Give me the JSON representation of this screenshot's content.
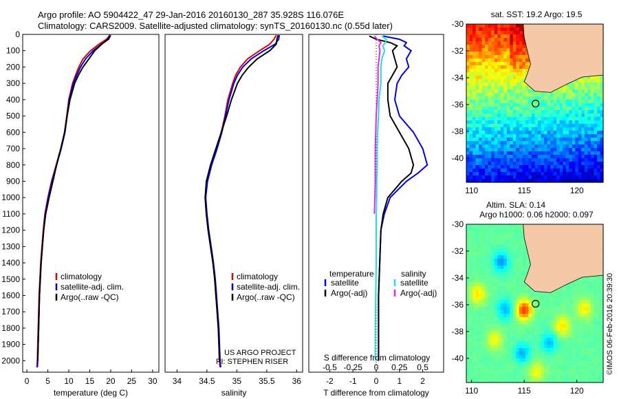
{
  "header": {
    "line1": "Argo profile: AO 5904422_47 29-Jan-2016 20160130_287 35.928S 116.076E",
    "line2": "Climatology: CARS2009. Satellite-adjusted climatology: synTS_20160130.nc (0.55d later)"
  },
  "colors": {
    "climatology": "#dd0000",
    "satellite": "#0000dd",
    "argo": "#000000",
    "sat_salinity": "#22dddd",
    "argo_salinity": "#ee22ee",
    "land": "#f5c9a8"
  },
  "credit": {
    "project": "US ARGO PROJECT",
    "pi": "PI: STEPHEN RISER",
    "imos": "©IMOS 06-Feb-2016 20:39:30"
  },
  "chart_data": [
    {
      "type": "line",
      "id": "temperature",
      "xlabel": "temperature (deg C)",
      "xlim": [
        -1,
        31.5
      ],
      "ylim": [
        0,
        2070
      ],
      "yticks": [
        0,
        100,
        200,
        300,
        400,
        500,
        600,
        700,
        800,
        900,
        1000,
        1100,
        1200,
        1300,
        1400,
        1500,
        1600,
        1700,
        1800,
        1900,
        2000
      ],
      "xticks": [
        0,
        5,
        10,
        15,
        20,
        25,
        30
      ],
      "legend": {
        "position": "center-right",
        "entries": [
          "climatology",
          "satellite-adj. clim.",
          "Argo(..raw -QC)"
        ]
      },
      "series": [
        {
          "name": "climatology",
          "color": "#dd0000",
          "depth": [
            5,
            30,
            60,
            100,
            150,
            200,
            250,
            300,
            400,
            500,
            600,
            700,
            800,
            900,
            1000,
            1100,
            1200,
            1300,
            1400,
            1500,
            1600,
            1700,
            1800,
            1900,
            2000,
            2040
          ],
          "values": [
            19.8,
            19.0,
            17.2,
            15.2,
            13.4,
            12.4,
            11.6,
            10.9,
            10.0,
            9.5,
            9.0,
            8.1,
            7.0,
            5.9,
            5.0,
            4.3,
            3.9,
            3.6,
            3.3,
            3.1,
            2.9,
            2.8,
            2.7,
            2.6,
            2.5,
            2.4
          ]
        },
        {
          "name": "satellite-adj. clim.",
          "color": "#0000dd",
          "depth": [
            5,
            30,
            60,
            100,
            150,
            200,
            250,
            300,
            400,
            500,
            600,
            700,
            800,
            900,
            1000,
            1100,
            1200,
            1300,
            1400,
            1500,
            1600,
            1700,
            1800,
            1900,
            2000,
            2040
          ],
          "values": [
            20.0,
            19.5,
            17.8,
            15.8,
            14.0,
            12.8,
            11.9,
            11.1,
            10.1,
            9.6,
            9.1,
            8.2,
            7.1,
            6.0,
            5.1,
            4.4,
            4.0,
            3.7,
            3.4,
            3.2,
            3.0,
            2.9,
            2.8,
            2.7,
            2.6,
            2.5
          ]
        },
        {
          "name": "Argo(..raw -QC)",
          "color": "#000000",
          "depth": [
            5,
            30,
            60,
            100,
            150,
            200,
            250,
            300,
            400,
            500,
            600,
            700,
            800,
            900,
            1000,
            1100,
            1200,
            1300,
            1400,
            1500,
            1600,
            1700,
            1800,
            1900,
            2000
          ],
          "values": [
            19.9,
            19.3,
            17.9,
            16.2,
            14.8,
            13.4,
            12.3,
            11.4,
            10.3,
            9.6,
            9.0,
            8.1,
            7.1,
            6.2,
            5.3,
            4.5,
            4.0,
            3.7,
            3.4,
            3.2,
            3.0,
            2.9,
            2.8,
            2.7,
            2.6
          ]
        }
      ]
    },
    {
      "type": "line",
      "id": "salinity",
      "xlabel": "salinity",
      "xlim": [
        33.8,
        36.1
      ],
      "ylim": [
        0,
        2070
      ],
      "xticks": [
        34,
        34.5,
        35,
        35.5,
        36
      ],
      "legend": {
        "position": "center-right",
        "entries": [
          "climatology",
          "satellite-adj. clim.",
          "Argo(..raw -QC)"
        ]
      },
      "series": [
        {
          "name": "climatology",
          "color": "#dd0000",
          "depth": [
            5,
            30,
            60,
            100,
            150,
            200,
            250,
            300,
            400,
            500,
            600,
            700,
            800,
            900,
            1000,
            1100,
            1200,
            1300,
            1400,
            1500,
            1600,
            1700,
            1800,
            1900,
            2000,
            2040
          ],
          "values": [
            35.66,
            35.62,
            35.55,
            35.38,
            35.18,
            35.06,
            34.98,
            34.93,
            34.85,
            34.8,
            34.74,
            34.66,
            34.57,
            34.5,
            34.47,
            34.49,
            34.52,
            34.56,
            34.6,
            34.63,
            34.65,
            34.67,
            34.69,
            34.7,
            34.71,
            34.72
          ]
        },
        {
          "name": "satellite-adj. clim.",
          "color": "#0000dd",
          "depth": [
            5,
            30,
            60,
            100,
            150,
            200,
            250,
            300,
            400,
            500,
            600,
            700,
            800,
            900,
            1000,
            1100,
            1200,
            1300,
            1400,
            1500,
            1600,
            1700,
            1800,
            1900,
            2000,
            2040
          ],
          "values": [
            35.71,
            35.7,
            35.64,
            35.45,
            35.24,
            35.1,
            35.01,
            34.95,
            34.87,
            34.81,
            34.75,
            34.67,
            34.58,
            34.51,
            34.48,
            34.5,
            34.53,
            34.57,
            34.61,
            34.64,
            34.66,
            34.68,
            34.7,
            34.71,
            34.72,
            34.73
          ]
        },
        {
          "name": "Argo(..raw -QC)",
          "color": "#000000",
          "depth": [
            5,
            30,
            60,
            100,
            150,
            200,
            250,
            300,
            400,
            500,
            600,
            700,
            800,
            900,
            1000,
            1100,
            1200,
            1300,
            1400,
            1500,
            1600,
            1700,
            1800,
            1900,
            2000
          ],
          "values": [
            35.69,
            35.67,
            35.66,
            35.55,
            35.34,
            35.2,
            35.09,
            35.01,
            34.91,
            34.83,
            34.74,
            34.65,
            34.56,
            34.49,
            34.47,
            34.49,
            34.52,
            34.56,
            34.6,
            34.63,
            34.65,
            34.67,
            34.69,
            34.7,
            34.71
          ]
        }
      ]
    },
    {
      "type": "line",
      "id": "difference",
      "xlabel": "T difference from climatology",
      "xlabel_top": "S difference from climatology",
      "xlim": [
        -2.9,
        2.9
      ],
      "xticks": [
        -2,
        -1,
        0,
        1,
        2
      ],
      "sticks_labels": [
        "-0.5",
        "-0.25",
        "0",
        "0.25",
        "0.5"
      ],
      "sticks": [
        -0.5,
        -0.25,
        0,
        0.25,
        0.5
      ],
      "s_scale": 4,
      "legend": {
        "position": "center",
        "headers": [
          "temperature",
          "salinity"
        ],
        "entries": [
          "satellite",
          "Argo(-adj)",
          "satellite",
          "Argo(-adj)"
        ]
      },
      "series": [
        {
          "name": "temperature satellite",
          "color": "#0000dd",
          "depth": [
            10,
            30,
            50,
            70,
            100,
            150,
            200,
            250,
            300,
            400,
            500,
            600,
            700,
            800,
            850,
            900,
            1000,
            1100,
            1200,
            1400,
            1600,
            1800,
            2000
          ],
          "values": [
            0.3,
            1.0,
            1.3,
            1.2,
            1.5,
            1.3,
            1.4,
            1.1,
            0.9,
            0.8,
            1.0,
            1.6,
            2.0,
            2.2,
            1.8,
            1.3,
            0.6,
            0.35,
            0.2,
            0.15,
            0.1,
            0.1,
            0.1
          ]
        },
        {
          "name": "temperature Argo(-adj)",
          "color": "#000000",
          "depth": [
            10,
            30,
            50,
            70,
            100,
            150,
            200,
            250,
            300,
            400,
            500,
            600,
            700,
            800,
            850,
            900,
            1000,
            1100,
            1200,
            1400,
            1600,
            1800,
            2000
          ],
          "values": [
            -0.3,
            0.0,
            0.6,
            0.9,
            0.7,
            0.8,
            0.9,
            0.7,
            0.5,
            0.5,
            0.6,
            1.0,
            1.4,
            1.6,
            1.5,
            1.1,
            0.5,
            0.3,
            0.2,
            0.15,
            0.1,
            0.1,
            0.1
          ]
        },
        {
          "name": "salinity satellite",
          "color": "#22dddd",
          "depth": [
            10,
            30,
            50,
            70,
            100,
            150,
            200,
            250,
            300,
            400,
            500,
            600,
            700,
            800,
            900,
            1000,
            1100,
            1200,
            1400,
            1600,
            1800,
            2000
          ],
          "values": [
            0.06,
            0.11,
            0.1,
            0.07,
            0.09,
            0.06,
            0.05,
            0.05,
            0.05,
            0.03,
            0.025,
            0.015,
            0.01,
            0.01,
            0.005,
            0.005,
            0.0,
            0.0,
            0.0,
            -0.005,
            -0.01,
            -0.01
          ]
        },
        {
          "name": "salinity Argo(-adj)",
          "color": "#ee22ee",
          "depth": [
            10,
            30,
            50,
            70,
            100,
            150,
            200,
            250,
            300,
            400,
            500,
            600,
            700,
            800,
            900,
            1000,
            1100
          ],
          "values": [
            -0.02,
            0.01,
            0.05,
            0.03,
            0.04,
            0.03,
            0.02,
            0.02,
            0.02,
            0.01,
            0.0,
            -0.005,
            -0.01,
            -0.01,
            -0.01,
            -0.015,
            -0.02
          ]
        }
      ]
    },
    {
      "type": "heatmap",
      "id": "sst_map",
      "title": "sat. SST: 19.2 Argo: 19.5",
      "xlim": [
        109.5,
        122.5
      ],
      "ylim": [
        -41.8,
        -30
      ],
      "xticks": [
        110,
        115,
        120
      ],
      "yticks": [
        -30,
        -32,
        -34,
        -36,
        -38,
        -40
      ],
      "argo_position": [
        116.076,
        -35.928
      ]
    },
    {
      "type": "heatmap",
      "id": "sla_map",
      "title": "Altim. SLA: 0.14",
      "subtitle": "Argo h1000: 0.06 h2000: 0.097",
      "xlim": [
        109.5,
        122.5
      ],
      "ylim": [
        -41.8,
        -30
      ],
      "xticks": [
        110,
        115,
        120
      ],
      "yticks": [
        -30,
        -32,
        -34,
        -36,
        -38,
        -40
      ],
      "argo_position": [
        116.076,
        -35.928
      ]
    }
  ]
}
